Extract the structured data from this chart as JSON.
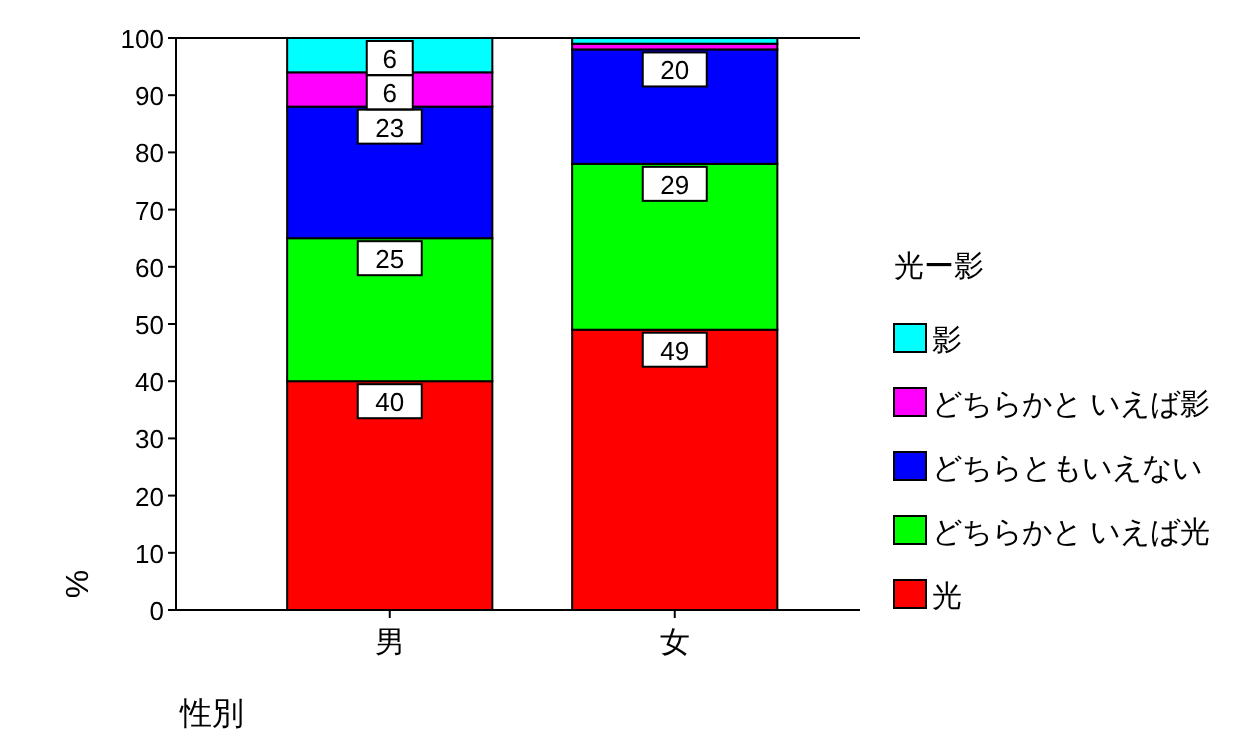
{
  "chart_data": {
    "type": "bar",
    "stacked": true,
    "categories": [
      "男",
      "女"
    ],
    "series": [
      {
        "name": "光",
        "color": "#ff0000",
        "values": [
          40,
          49
        ],
        "value_labels": [
          "40",
          "49"
        ]
      },
      {
        "name": "どちらかと いえば光",
        "color": "#00ff00",
        "values": [
          25,
          29
        ],
        "value_labels": [
          "25",
          "29"
        ]
      },
      {
        "name": "どちらともいえない",
        "color": "#0000ff",
        "values": [
          23,
          20
        ],
        "value_labels": [
          "23",
          "20"
        ]
      },
      {
        "name": "どちらかと いえば影",
        "color": "#ff00ff",
        "values": [
          6,
          1
        ],
        "value_labels": [
          "6",
          null
        ]
      },
      {
        "name": "影",
        "color": "#00ffff",
        "values": [
          6,
          1
        ],
        "value_labels": [
          "6",
          null
        ]
      }
    ],
    "ylim": [
      0,
      100
    ],
    "yticks": [
      0,
      10,
      20,
      30,
      40,
      50,
      60,
      70,
      80,
      90,
      100
    ],
    "xlabel": "性別",
    "ylabel": "%",
    "legend_title": "光ー影",
    "legend": "right"
  }
}
